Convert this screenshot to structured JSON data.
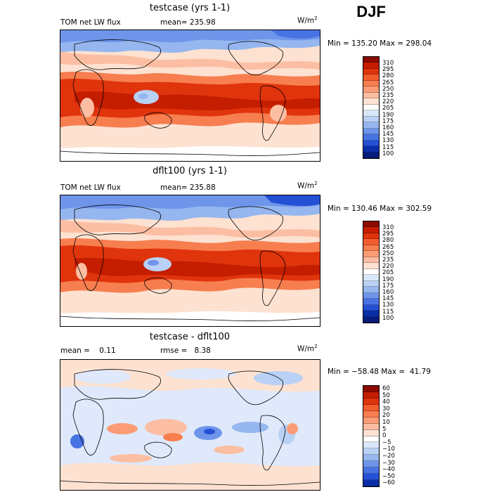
{
  "season": "DJF",
  "panels": [
    {
      "title": "testcase (yrs 1-1)",
      "left_label": "TOM net LW flux",
      "stat_label": "mean= 235.98",
      "units_base": "W/m",
      "units_exp": "2",
      "minmax": "Min = 135.20 Max = 298.04",
      "colorbar_ticks": [
        "310",
        "295",
        "280",
        "265",
        "250",
        "235",
        "220",
        "205",
        "190",
        "175",
        "160",
        "145",
        "130",
        "115",
        "100"
      ]
    },
    {
      "title": "dflt100 (yrs 1-1)",
      "left_label": "TOM net LW flux",
      "stat_label": "mean= 235.88",
      "units_base": "W/m",
      "units_exp": "2",
      "minmax": "Min = 130.46 Max = 302.59",
      "colorbar_ticks": [
        "310",
        "295",
        "280",
        "265",
        "250",
        "235",
        "220",
        "205",
        "190",
        "175",
        "160",
        "145",
        "130",
        "115",
        "100"
      ]
    },
    {
      "title": "testcase - dflt100",
      "left_label": "mean =    0.11",
      "stat_label": "rmse =   8.38",
      "units_base": "W/m",
      "units_exp": "2",
      "minmax": "Min = −58.48 Max =  41.79",
      "colorbar_ticks": [
        "60",
        "50",
        "40",
        "30",
        "20",
        "10",
        "5",
        "0",
        "−5",
        "−10",
        "−20",
        "−30",
        "−40",
        "−50",
        "−60"
      ]
    }
  ],
  "colors": {
    "abs_palette": [
      "#8c0a00",
      "#c41d00",
      "#e0340c",
      "#f25d2e",
      "#f77e4f",
      "#fb9c77",
      "#fcbea3",
      "#fde2d2",
      "#ffffff",
      "#d8e7fa",
      "#b9d1f5",
      "#95b6ef",
      "#6e95ea",
      "#4873e3",
      "#2450d6",
      "#0b2ea8",
      "#071c7a"
    ],
    "diff_palette": [
      "#8c0a00",
      "#c41d00",
      "#e0340c",
      "#f25d2e",
      "#f77e4f",
      "#fb9c77",
      "#fcbea3",
      "#fde2d2",
      "#ffffff",
      "#d8e7fa",
      "#b9d1f5",
      "#95b6ef",
      "#6e95ea",
      "#4873e3",
      "#2450d6",
      "#0b2ea8"
    ]
  }
}
